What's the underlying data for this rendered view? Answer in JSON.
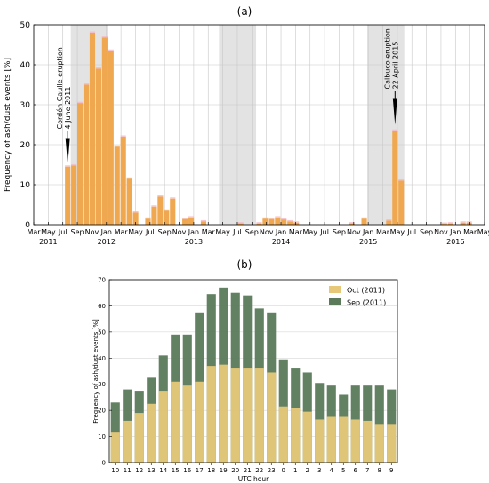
{
  "chart_data": [
    {
      "type": "bar",
      "panel_label": "(a)",
      "ylabel": "Frequency of ash/dust events [%]",
      "ylim": [
        0,
        50
      ],
      "yticks": [
        0,
        10,
        20,
        30,
        40,
        50
      ],
      "x_tick_labels": [
        "Mar",
        "May",
        "Jul",
        "Sep",
        "Nov",
        "Jan",
        "Mar",
        "May",
        "Jul",
        "Sep",
        "Nov",
        "Jan",
        "Mar",
        "May",
        "Jul",
        "Sep",
        "Nov",
        "Jan",
        "Mar",
        "May",
        "Jul",
        "Sep",
        "Nov",
        "Jan",
        "Mar",
        "May",
        "Jul",
        "Sep",
        "Nov",
        "Jan",
        "Mar",
        "May"
      ],
      "year_labels": [
        {
          "text": "2011",
          "tick": 1
        },
        {
          "text": "2012",
          "tick": 5
        },
        {
          "text": "2013",
          "tick": 11
        },
        {
          "text": "2014",
          "tick": 17
        },
        {
          "text": "2015",
          "tick": 23
        },
        {
          "text": "2016",
          "tick": 29
        }
      ],
      "shaded_periods": [
        [
          6,
          12
        ],
        [
          30,
          36
        ],
        [
          54,
          60
        ],
        [
          78,
          84
        ],
        [
          102,
          108
        ]
      ],
      "colors": {
        "bar": "#f0a850",
        "shade": "#e3e3e3",
        "overlay": "#f4b8c4"
      },
      "values": [
        0,
        0,
        0,
        0,
        0,
        14.5,
        14.8,
        30.4,
        35,
        48,
        39,
        46.8,
        43.5,
        19.5,
        22,
        11.5,
        3,
        0,
        1.5,
        4.5,
        7,
        3.5,
        6.5,
        0,
        1.4,
        1.8,
        0,
        0.8,
        0,
        0,
        0,
        0,
        0,
        0.3,
        0,
        0,
        0.3,
        1.5,
        1.4,
        1.8,
        1.3,
        0.8,
        0.5,
        0,
        0,
        0,
        0,
        0,
        0,
        0,
        0,
        0.3,
        0,
        1.5,
        0,
        0,
        0,
        1,
        23.5,
        11,
        0,
        0,
        0,
        0,
        0,
        0,
        0.2,
        0.3,
        0,
        0.5,
        0.5,
        0,
        0
      ],
      "annotations": [
        {
          "text": "Cordón Caulle eruption\n4 June 2011",
          "x": 5,
          "tip": 15
        },
        {
          "text": "Calbuco eruption\n22 April 2015",
          "x": 58,
          "tip": 25
        }
      ]
    },
    {
      "type": "bar",
      "panel_label": "(b)",
      "xlabel": "UTC hour",
      "ylabel": "Frequency of ash/dust events [%]",
      "ylim": [
        0,
        70
      ],
      "yticks": [
        0,
        10,
        20,
        30,
        40,
        50,
        60,
        70
      ],
      "categories": [
        "10",
        "11",
        "12",
        "13",
        "14",
        "15",
        "16",
        "17",
        "18",
        "19",
        "20",
        "21",
        "22",
        "23",
        "0",
        "1",
        "2",
        "3",
        "4",
        "5",
        "6",
        "7",
        "8",
        "9"
      ],
      "series": [
        {
          "name": "Oct (2011)",
          "color": "#e6c878",
          "values": [
            11.5,
            16,
            19,
            22.5,
            27.5,
            31,
            29.5,
            31,
            37,
            37.5,
            36,
            36,
            36,
            34.5,
            21.5,
            21,
            19.5,
            16.5,
            17.5,
            17.5,
            16.5,
            16,
            14.5,
            14.5
          ]
        },
        {
          "name": "Sep (2011)",
          "color": "#5a7a5a",
          "values": [
            23,
            28,
            27.5,
            32.5,
            41,
            49,
            49,
            57.5,
            64.5,
            67,
            65,
            64,
            59,
            57.5,
            39.5,
            36,
            34.5,
            30.5,
            29.5,
            26,
            29.5,
            29.5,
            29.5,
            28
          ]
        }
      ],
      "legend_position": "top-right"
    }
  ]
}
